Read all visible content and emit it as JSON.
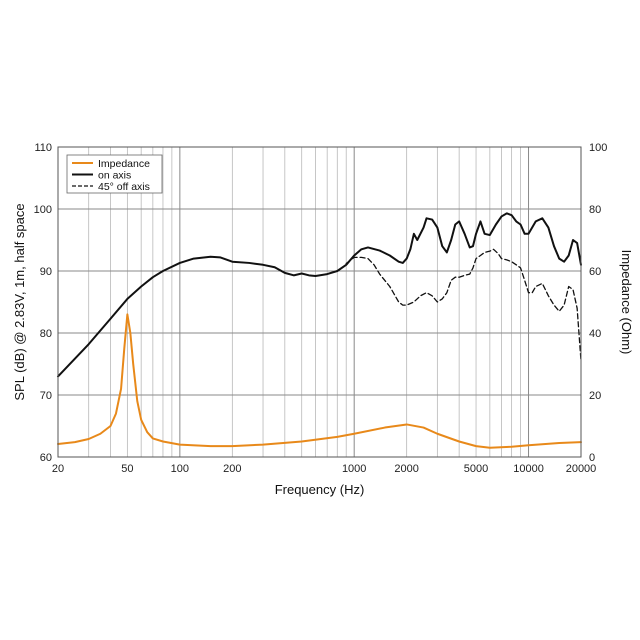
{
  "chart_data": {
    "type": "line",
    "xscale": "log",
    "xlabel": "Frequency (Hz)",
    "ylabel": "SPL (dB) @ 2.83V, 1m, half space",
    "y2label": "Impedance (Ohm)",
    "xlim": [
      20,
      20000
    ],
    "ylim": [
      60,
      110
    ],
    "y2lim": [
      0,
      100
    ],
    "xticks": [
      20,
      50,
      100,
      200,
      1000,
      2000,
      5000,
      10000,
      20000
    ],
    "xtick_labels": [
      "20",
      "50",
      "100",
      "200",
      "1000",
      "2000",
      "5000",
      "10000",
      "20000"
    ],
    "yticks": [
      60,
      70,
      80,
      90,
      100,
      110
    ],
    "ytick_labels": [
      "60",
      "70",
      "80",
      "90",
      "100",
      "110"
    ],
    "y2ticks": [
      0,
      20,
      40,
      60,
      80,
      100
    ],
    "y2tick_labels": [
      "0",
      "20",
      "40",
      "60",
      "80",
      "100"
    ],
    "legend": {
      "position": "top-left",
      "entries": [
        "Impedance",
        "on axis",
        "45° off axis"
      ]
    },
    "series": [
      {
        "name": "Impedance",
        "axis": "right",
        "color": "#e8891a",
        "style": "solid",
        "points": [
          [
            20,
            4.2
          ],
          [
            25,
            4.8
          ],
          [
            30,
            5.8
          ],
          [
            35,
            7.5
          ],
          [
            40,
            10
          ],
          [
            43,
            14
          ],
          [
            46,
            22
          ],
          [
            48,
            35
          ],
          [
            50,
            46
          ],
          [
            52,
            40
          ],
          [
            54,
            30
          ],
          [
            57,
            18
          ],
          [
            60,
            12
          ],
          [
            65,
            8
          ],
          [
            70,
            6
          ],
          [
            80,
            5
          ],
          [
            100,
            4
          ],
          [
            150,
            3.5
          ],
          [
            200,
            3.5
          ],
          [
            300,
            4
          ],
          [
            500,
            5
          ],
          [
            800,
            6.5
          ],
          [
            1000,
            7.5
          ],
          [
            1500,
            9.5
          ],
          [
            2000,
            10.5
          ],
          [
            2500,
            9.5
          ],
          [
            3000,
            7.5
          ],
          [
            4000,
            5
          ],
          [
            5000,
            3.5
          ],
          [
            6000,
            3
          ],
          [
            8000,
            3.3
          ],
          [
            10000,
            3.8
          ],
          [
            15000,
            4.5
          ],
          [
            20000,
            4.8
          ]
        ]
      },
      {
        "name": "on axis",
        "axis": "left",
        "color": "#111111",
        "style": "solid",
        "points": [
          [
            20,
            73
          ],
          [
            30,
            78.2
          ],
          [
            40,
            82.3
          ],
          [
            50,
            85.5
          ],
          [
            60,
            87.5
          ],
          [
            70,
            89
          ],
          [
            80,
            90
          ],
          [
            100,
            91.3
          ],
          [
            120,
            92
          ],
          [
            150,
            92.3
          ],
          [
            170,
            92.2
          ],
          [
            200,
            91.5
          ],
          [
            250,
            91.3
          ],
          [
            300,
            91
          ],
          [
            350,
            90.6
          ],
          [
            400,
            89.7
          ],
          [
            450,
            89.3
          ],
          [
            500,
            89.6
          ],
          [
            550,
            89.3
          ],
          [
            600,
            89.2
          ],
          [
            700,
            89.5
          ],
          [
            800,
            90
          ],
          [
            900,
            91
          ],
          [
            1000,
            92.5
          ],
          [
            1100,
            93.5
          ],
          [
            1200,
            93.8
          ],
          [
            1400,
            93.3
          ],
          [
            1600,
            92.5
          ],
          [
            1800,
            91.5
          ],
          [
            1900,
            91.3
          ],
          [
            2000,
            92
          ],
          [
            2100,
            93.5
          ],
          [
            2200,
            96
          ],
          [
            2300,
            95
          ],
          [
            2500,
            97
          ],
          [
            2600,
            98.5
          ],
          [
            2800,
            98.3
          ],
          [
            3000,
            97
          ],
          [
            3200,
            94
          ],
          [
            3400,
            93
          ],
          [
            3600,
            95
          ],
          [
            3800,
            97.5
          ],
          [
            4000,
            98
          ],
          [
            4300,
            96
          ],
          [
            4600,
            93.8
          ],
          [
            4800,
            94
          ],
          [
            5000,
            96
          ],
          [
            5300,
            98
          ],
          [
            5600,
            96
          ],
          [
            6000,
            95.8
          ],
          [
            6500,
            97.5
          ],
          [
            7000,
            98.8
          ],
          [
            7500,
            99.3
          ],
          [
            8000,
            99
          ],
          [
            8500,
            98
          ],
          [
            9000,
            97.5
          ],
          [
            9500,
            96
          ],
          [
            10000,
            96
          ],
          [
            11000,
            98
          ],
          [
            12000,
            98.5
          ],
          [
            13000,
            97
          ],
          [
            14000,
            94
          ],
          [
            15000,
            92
          ],
          [
            16000,
            91.5
          ],
          [
            17000,
            92.5
          ],
          [
            18000,
            95
          ],
          [
            19000,
            94.5
          ],
          [
            20000,
            91
          ]
        ]
      },
      {
        "name": "45° off axis",
        "axis": "left",
        "color": "#111111",
        "style": "dashed",
        "points": [
          [
            900,
            91.2
          ],
          [
            1000,
            92.2
          ],
          [
            1100,
            92.2
          ],
          [
            1200,
            92
          ],
          [
            1300,
            91
          ],
          [
            1400,
            89.5
          ],
          [
            1600,
            87.5
          ],
          [
            1800,
            85
          ],
          [
            1900,
            84.5
          ],
          [
            2000,
            84.5
          ],
          [
            2200,
            85
          ],
          [
            2400,
            86
          ],
          [
            2600,
            86.5
          ],
          [
            2800,
            86
          ],
          [
            3000,
            85
          ],
          [
            3200,
            85.5
          ],
          [
            3400,
            86.5
          ],
          [
            3600,
            88.5
          ],
          [
            3800,
            89
          ],
          [
            4000,
            89
          ],
          [
            4300,
            89.3
          ],
          [
            4600,
            89.5
          ],
          [
            4800,
            90.5
          ],
          [
            5000,
            92
          ],
          [
            5300,
            92.5
          ],
          [
            5600,
            93
          ],
          [
            6000,
            93.2
          ],
          [
            6300,
            93.5
          ],
          [
            6700,
            92.8
          ],
          [
            7000,
            92
          ],
          [
            7500,
            91.8
          ],
          [
            8000,
            91.5
          ],
          [
            8500,
            91
          ],
          [
            9000,
            90.5
          ],
          [
            9500,
            88.5
          ],
          [
            10000,
            86.5
          ],
          [
            10500,
            86.5
          ],
          [
            11000,
            87.5
          ],
          [
            12000,
            88
          ],
          [
            13000,
            86
          ],
          [
            14000,
            84.5
          ],
          [
            15000,
            83.5
          ],
          [
            16000,
            84.5
          ],
          [
            17000,
            87.5
          ],
          [
            18000,
            87
          ],
          [
            19000,
            84
          ],
          [
            20000,
            75.5
          ]
        ]
      }
    ]
  }
}
